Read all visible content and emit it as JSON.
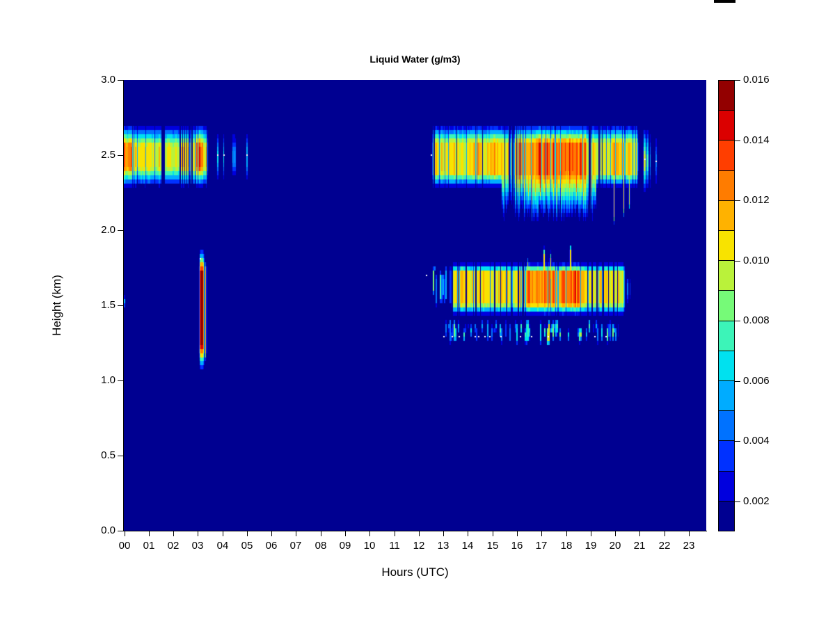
{
  "title": "Liquid Water (g/m3)",
  "axes": {
    "x": {
      "label": "Hours (UTC)",
      "ticks": [
        "00",
        "01",
        "02",
        "03",
        "04",
        "05",
        "06",
        "07",
        "08",
        "09",
        "10",
        "11",
        "12",
        "13",
        "14",
        "15",
        "16",
        "17",
        "18",
        "19",
        "20",
        "21",
        "22",
        "23"
      ]
    },
    "y": {
      "label": "Height (km)",
      "ticks": [
        "0.0",
        "0.5",
        "1.0",
        "1.5",
        "2.0",
        "2.5",
        "3.0"
      ]
    }
  },
  "colorbar": {
    "tick_labels": [
      "0.002",
      "0.004",
      "0.006",
      "0.008",
      "0.010",
      "0.012",
      "0.014",
      "0.016"
    ],
    "min": 0.001,
    "max": 0.016
  },
  "chart_data": {
    "type": "heatmap",
    "title": "Liquid Water (g/m3)",
    "xlabel": "Hours (UTC)",
    "ylabel": "Height (km)",
    "x_range": [
      0,
      23.72
    ],
    "y_range": [
      0,
      3.0
    ],
    "z_range": [
      0.001,
      0.016
    ],
    "z_step": 0.001,
    "background": "#000091",
    "palette": [
      "#000091",
      "#0000DE",
      "#0031FF",
      "#0072FF",
      "#00ACFF",
      "#00E1EF",
      "#3CF4B8",
      "#76FA78",
      "#BAF23A",
      "#F8E300",
      "#FFB200",
      "#FF7C00",
      "#FF3E00",
      "#DB0000",
      "#930000"
    ],
    "speck_color": "#FFFFFF",
    "features": [
      {
        "id": "cloud-upper-left",
        "type": "band",
        "t0": 0,
        "t1": 3.45,
        "edgeL": 0,
        "edgeR": 0.08,
        "hc": 2.49,
        "core": 0.075,
        "extTop": 0.23,
        "extBot": 0.22,
        "peak": 0.0107,
        "noise": 0.18,
        "dipProb": 0.05,
        "seed": 11,
        "spots": [
          [
            0,
            0.14,
            0.0134
          ],
          [
            0.14,
            0.42,
            0.0125
          ],
          [
            1.68,
            2.26,
            0.0099
          ],
          [
            2.95,
            3.24,
            0.014
          ]
        ],
        "gaps": [
          [
            1.6,
            0.14
          ],
          [
            2.3,
            0.04
          ],
          [
            2.385,
            0.03
          ],
          [
            2.47,
            0.03
          ],
          [
            2.565,
            0.04
          ],
          [
            2.66,
            0.03
          ],
          [
            2.77,
            0.05
          ],
          [
            3.4,
            0.03
          ]
        ]
      },
      {
        "id": "cloud-upper-left-remnants",
        "type": "cols",
        "hc": 2.49,
        "extTop": 0.21,
        "extBot": 0.2,
        "seed": 12,
        "cols": [
          [
            3.82,
            0.05,
            0.0065
          ],
          [
            4.07,
            0.05,
            0.0065
          ],
          [
            4.5,
            0.15,
            0.005
          ],
          [
            5.02,
            0.04,
            0.006
          ]
        ]
      },
      {
        "id": "plume-03utc",
        "type": "band",
        "t0": 3.06,
        "t1": 3.3,
        "edgeL": 0.05,
        "edgeR": 0.05,
        "hc": 1.48,
        "core": 0.25,
        "extTop": 0.41,
        "extBot": 0.43,
        "peak": 0.0122,
        "noise": 0.08,
        "dipProb": 0,
        "seed": 13,
        "spots": [
          [
            3.09,
            3.22,
            0.0147
          ]
        ],
        "gaps": []
      },
      {
        "id": "plume-03utc-sideline",
        "type": "vline",
        "lines": [
          [
            3.34,
            0.035,
            1.12,
            1.8,
            0.0102
          ]
        ]
      },
      {
        "id": "cloud-upper-right",
        "type": "band",
        "t0": 12.55,
        "t1": 20.98,
        "edgeL": 0.06,
        "edgeR": 0.1,
        "hc": 2.48,
        "core": 0.1,
        "extTop": 0.24,
        "extBot": 0.21,
        "peak": 0.0108,
        "noise": 0.18,
        "dipProb": 0.1,
        "seed": 21,
        "deepZone": [
          15.4,
          19.25,
          0.34,
          0.14
        ],
        "fingerProb": 0.15,
        "redStreakZone": [
          16.55,
          18.8,
          0.25,
          0.0139
        ],
        "spots": [
          [
            14.1,
            14.55,
            0.0121
          ],
          [
            15.05,
            15.32,
            0.0121
          ],
          [
            16.0,
            16.55,
            0.0127
          ],
          [
            16.55,
            18.85,
            0.0131
          ],
          [
            19.85,
            20.5,
            0.012
          ]
        ],
        "gaps": [
          [
            12.64,
            0.05
          ],
          [
            13.57,
            0.04
          ],
          [
            14.62,
            0.03
          ],
          [
            15.52,
            0.05
          ],
          [
            15.7,
            0.04
          ],
          [
            15.85,
            0.04
          ],
          [
            16.0,
            0.04
          ],
          [
            16.14,
            0.03
          ],
          [
            18.98,
            0.08
          ],
          [
            19.37,
            0.05
          ],
          [
            19.49,
            0.04
          ]
        ]
      },
      {
        "id": "cloud-upper-right-trailing",
        "type": "cols",
        "hc": 2.46,
        "extTop": 0.26,
        "extBot": 0.24,
        "seed": 22,
        "cols": [
          [
            21.22,
            0.1,
            0.0098
          ],
          [
            21.33,
            0.08,
            0.0075
          ],
          [
            21.44,
            0.05,
            0.006
          ],
          [
            21.68,
            0.05,
            0.0045
          ]
        ]
      },
      {
        "id": "cloud-upper-right-descenders",
        "type": "vline",
        "lines": [
          [
            19.97,
            0.03,
            2.03,
            2.4,
            0.0105
          ],
          [
            20.36,
            0.03,
            2.08,
            2.4,
            0.0102
          ],
          [
            20.59,
            0.03,
            2.12,
            2.42,
            0.01
          ]
        ]
      },
      {
        "id": "cloud-mid-right",
        "type": "band",
        "t0": 13.3,
        "t1": 20.45,
        "edgeL": 0.06,
        "edgeR": 0.12,
        "hc": 1.615,
        "core": 0.105,
        "extTop": 0.175,
        "extBot": 0.19,
        "peak": 0.0108,
        "noise": 0.18,
        "dipProb": 0.12,
        "seed": 31,
        "redStreakZone": [
          16.9,
          18.6,
          0.3,
          0.0137
        ],
        "spots": [
          [
            13.55,
            14.05,
            0.0116
          ],
          [
            16.1,
            18.75,
            0.0125
          ]
        ],
        "gaps": [
          [
            13.38,
            0.04
          ],
          [
            13.62,
            0.03
          ],
          [
            13.95,
            0.05
          ],
          [
            14.34,
            0.05
          ],
          [
            14.52,
            0.03
          ],
          [
            15.1,
            0.05
          ],
          [
            15.35,
            0.03
          ],
          [
            15.6,
            0.04
          ],
          [
            15.78,
            0.03
          ],
          [
            16.06,
            0.06
          ],
          [
            16.27,
            0.04
          ],
          [
            18.9,
            0.04
          ],
          [
            19.08,
            0.05
          ],
          [
            19.27,
            0.04
          ],
          [
            19.52,
            0.05
          ],
          [
            19.75,
            0.04
          ],
          [
            19.95,
            0.04
          ],
          [
            20.1,
            0.03
          ]
        ]
      },
      {
        "id": "cloud-mid-right-leadin",
        "type": "streaks",
        "t0": 12.42,
        "t1": 13.32,
        "h0": 1.47,
        "h1": 1.8,
        "density": 0.55,
        "pmin": 0.003,
        "pmax": 0.0095,
        "seed": 32,
        "hang": true
      },
      {
        "id": "cloud-mid-right-spikes",
        "type": "vline",
        "lines": [
          [
            16.45,
            0.03,
            1.62,
            1.83,
            0.01
          ],
          [
            17.12,
            0.035,
            1.62,
            1.9,
            0.0107
          ],
          [
            17.38,
            0.03,
            1.62,
            1.87,
            0.0105
          ],
          [
            18.2,
            0.035,
            1.62,
            1.92,
            0.0107
          ]
        ]
      },
      {
        "id": "drizzle-band",
        "type": "streaks",
        "t0": 12.95,
        "t1": 20.15,
        "h0": 1.22,
        "h1": 1.43,
        "density": 0.5,
        "pmin": 0.0028,
        "pmax": 0.0085,
        "seed": 33,
        "yellowZone": [
          16.1,
          18.85,
          0.006,
          0.0105
        ]
      },
      {
        "id": "left-edge-dash",
        "type": "vline",
        "lines": [
          [
            0.03,
            0.05,
            1.46,
            1.58,
            0.006
          ]
        ]
      },
      {
        "id": "trailing-cols-right",
        "type": "cols",
        "hc": 1.6,
        "extTop": 0.14,
        "extBot": 0.13,
        "seed": 34,
        "cols": [
          [
            20.52,
            0.04,
            0.004
          ],
          [
            20.61,
            0.03,
            0.003
          ]
        ]
      }
    ],
    "specks": [
      [
        3.13,
        1.81
      ],
      [
        3.82,
        2.5
      ],
      [
        4.07,
        2.5
      ],
      [
        5.02,
        2.5
      ],
      [
        12.33,
        1.7
      ],
      [
        12.52,
        2.5
      ],
      [
        21.22,
        2.47
      ],
      [
        21.68,
        2.46
      ],
      [
        13.05,
        1.29
      ],
      [
        13.38,
        1.29
      ],
      [
        13.65,
        1.29
      ],
      [
        14.3,
        1.29
      ],
      [
        14.45,
        1.29
      ],
      [
        14.7,
        1.29
      ],
      [
        14.9,
        1.29
      ],
      [
        15.35,
        1.29
      ],
      [
        16.15,
        1.29
      ],
      [
        16.62,
        1.29
      ],
      [
        17.3,
        1.29
      ],
      [
        19.2,
        1.29
      ],
      [
        19.65,
        1.29
      ]
    ]
  }
}
